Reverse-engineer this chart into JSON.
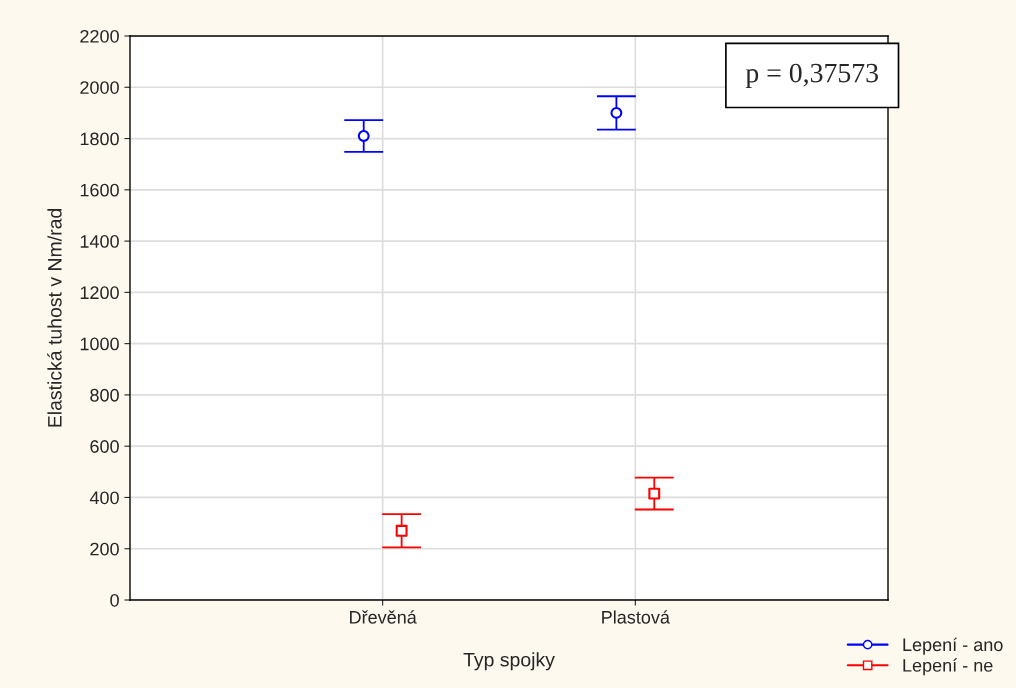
{
  "chart_data": {
    "type": "scatter",
    "xlabel": "Typ spojky",
    "ylabel": "Elastická tuhost v Nm/rad",
    "categories": [
      "Dřevěná",
      "Plastová"
    ],
    "series": [
      {
        "name": "Lepení - ano",
        "color": "#0000ff",
        "marker": "circle",
        "values": [
          1810,
          1900
        ],
        "errors": [
          62,
          65
        ]
      },
      {
        "name": "Lepení - ne",
        "color": "#ff0000",
        "marker": "square",
        "values": [
          270,
          415
        ],
        "errors": [
          65,
          62
        ]
      }
    ],
    "ylim": [
      0,
      2200
    ],
    "yticks": [
      0,
      200,
      400,
      600,
      800,
      1000,
      1200,
      1400,
      1600,
      1800,
      2000,
      2200
    ],
    "grid": true,
    "legend": "bottom right",
    "annotations": [
      "p = 0,37573"
    ]
  }
}
